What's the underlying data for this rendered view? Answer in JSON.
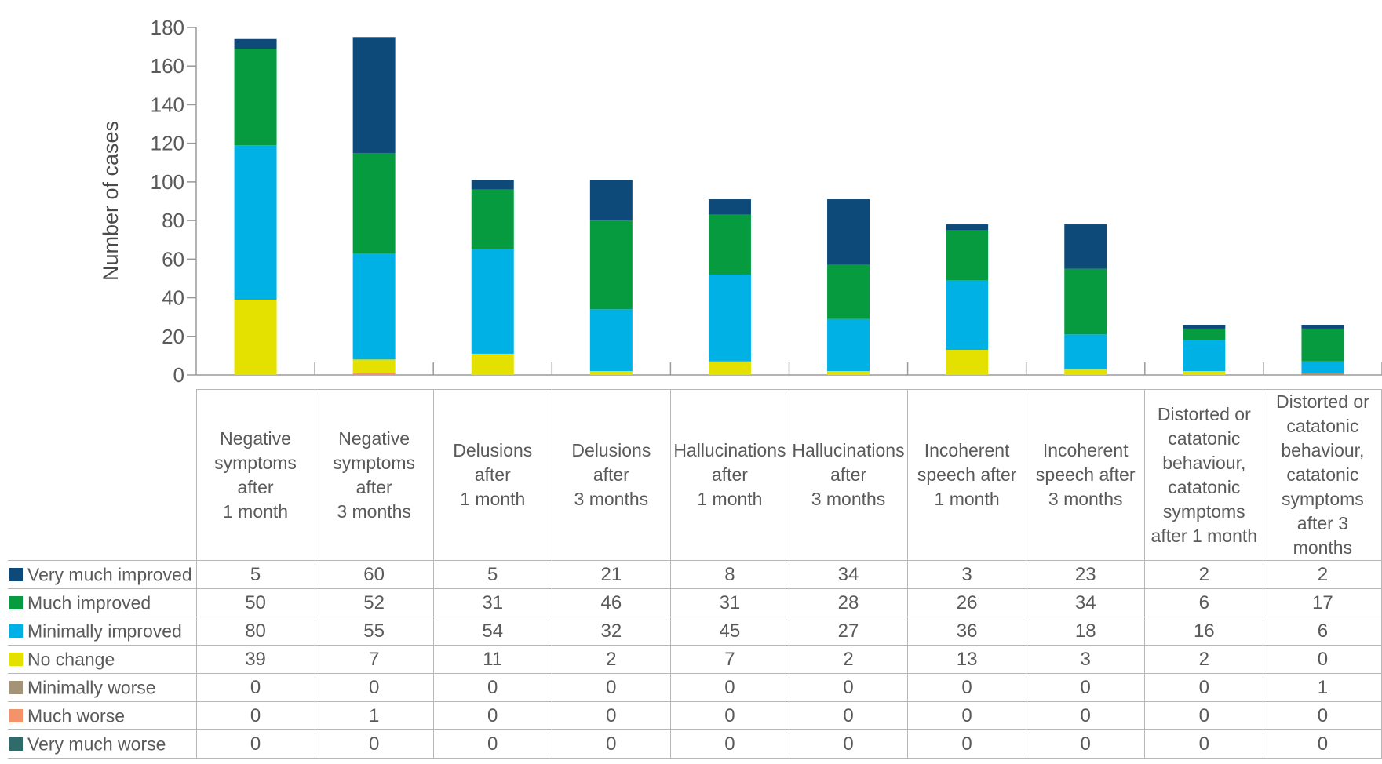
{
  "chart_data": {
    "type": "bar",
    "stacked": true,
    "ylabel": "Number of cases",
    "ylim": [
      0,
      180
    ],
    "yticks": [
      0,
      20,
      40,
      60,
      80,
      100,
      120,
      140,
      160,
      180
    ],
    "grid": false,
    "legend_placement": "table-rows-left",
    "categories": [
      "Negative symptoms after 1 month",
      "Negative symptoms after 3 months",
      "Delusions after 1 month",
      "Delusions after 3 months",
      "Hallucinations after 1 month",
      "Hallucinations after 3 months",
      "Incoherent speech after 1 month",
      "Incoherent speech after 3 months",
      "Distorted or catatonic behaviour, catatonic symptoms after 1 month",
      "Distorted or catatonic behaviour, catatonic symptoms after 3 months"
    ],
    "category_lines": [
      [
        "Negative",
        "symptoms",
        "after",
        "1 month"
      ],
      [
        "Negative",
        "symptoms",
        "after",
        "3 months"
      ],
      [
        "Delusions",
        "after",
        "1 month"
      ],
      [
        "Delusions",
        "after",
        "3 months"
      ],
      [
        "Hallucinations",
        "after",
        "1 month"
      ],
      [
        "Hallucinations",
        "after",
        "3 months"
      ],
      [
        "Incoherent",
        "speech after",
        "1 month"
      ],
      [
        "Incoherent",
        "speech after",
        "3 months"
      ],
      [
        "Distorted or",
        "catatonic",
        "behaviour,",
        "catatonic",
        "symptoms",
        "after 1 month"
      ],
      [
        "Distorted or",
        "catatonic",
        "behaviour,",
        "catatonic",
        "symptoms",
        "after 3 months"
      ]
    ],
    "series": [
      {
        "name": "Very much improved",
        "color": "#0d4a7a",
        "values": [
          5,
          60,
          5,
          21,
          8,
          34,
          3,
          23,
          2,
          2
        ]
      },
      {
        "name": "Much improved",
        "color": "#069b3f",
        "values": [
          50,
          52,
          31,
          46,
          31,
          28,
          26,
          34,
          6,
          17
        ]
      },
      {
        "name": "Minimally improved",
        "color": "#00b1e6",
        "values": [
          80,
          55,
          54,
          32,
          45,
          27,
          36,
          18,
          16,
          6
        ]
      },
      {
        "name": "No change",
        "color": "#e4e000",
        "values": [
          39,
          7,
          11,
          2,
          7,
          2,
          13,
          3,
          2,
          0
        ]
      },
      {
        "name": "Minimally worse",
        "color": "#a39478",
        "values": [
          0,
          0,
          0,
          0,
          0,
          0,
          0,
          0,
          0,
          1
        ]
      },
      {
        "name": "Much worse",
        "color": "#f4926a",
        "values": [
          0,
          1,
          0,
          0,
          0,
          0,
          0,
          0,
          0,
          0
        ]
      },
      {
        "name": "Very much worse",
        "color": "#2f6b6b",
        "values": [
          0,
          0,
          0,
          0,
          0,
          0,
          0,
          0,
          0,
          0
        ]
      }
    ],
    "stack_order_bottom_to_top": [
      "Very much worse",
      "Much worse",
      "Minimally worse",
      "No change",
      "Minimally improved",
      "Much improved",
      "Very much improved"
    ]
  }
}
